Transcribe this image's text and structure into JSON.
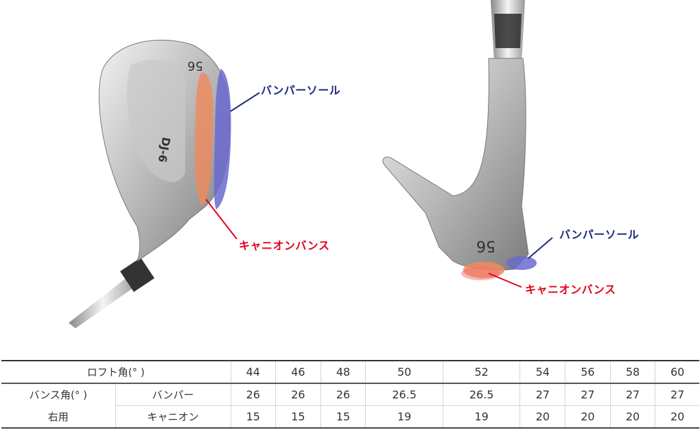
{
  "left_image": {
    "head_markings": [
      "56",
      "DJ-6"
    ],
    "callouts": {
      "bumper_sole": "バンパーソール",
      "canyon_bounce": "キャニオンバンス"
    }
  },
  "right_image": {
    "head_markings": [
      "56"
    ],
    "callouts": {
      "bumper_sole": "バンパーソール",
      "canyon_bounce": "キャニオンバンス"
    }
  },
  "colors": {
    "bumper": "#1c2a7a",
    "canyon": "#e3001b",
    "bumper_zone": "#6a6ad0",
    "canyon_zone": "#f08a5d"
  },
  "table": {
    "loft_header": "ロフト角(° )",
    "lofts": [
      "44",
      "46",
      "48",
      "50",
      "52",
      "54",
      "56",
      "58",
      "60"
    ],
    "bounce_label": "バンス角(° )",
    "hand_label": "右用",
    "rows": [
      {
        "label": "バンパー",
        "values": [
          "26",
          "26",
          "26",
          "26.5",
          "26.5",
          "27",
          "27",
          "27",
          "27"
        ]
      },
      {
        "label": "キャニオン",
        "values": [
          "15",
          "15",
          "15",
          "19",
          "19",
          "20",
          "20",
          "20",
          "20"
        ]
      }
    ]
  }
}
